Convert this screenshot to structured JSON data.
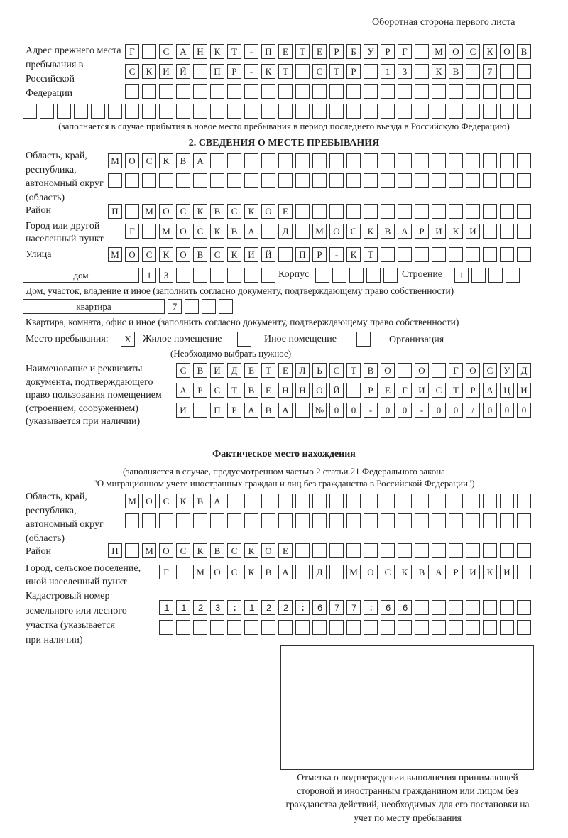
{
  "header": {
    "side_label": "Оборотная сторона первого листа"
  },
  "prev_address": {
    "label": "Адрес прежнего места пребывания в Российской Федерации",
    "rows": [
      "Г САНКТ-ПЕТЕРБУРГ МОСКОВ",
      "СКИЙ ПР-КТ СТР 13 КВ 7  ",
      "                        ",
      "                              "
    ],
    "note": "(заполняется в случае прибытия в новое место пребывания в период последнего въезда в Российскую Федерацию)"
  },
  "stay": {
    "section_title": "2. СВЕДЕНИЯ О МЕСТЕ ПРЕБЫВАНИЯ",
    "region_label": "Область, край, республика, автономный округ (область)",
    "region_rows": [
      "МОСКВА                   ",
      "                         "
    ],
    "district_label": "Район",
    "district": "П МОСКВСКОЕ              ",
    "city_label": "Город или другой населенный пункт",
    "city": "Г МОСКВА Д МОСКВАРИКИ   ",
    "street_label": "Улица",
    "street": "МОСКОВСКИЙ ПР-КТ         ",
    "house_type": "дом",
    "house": "13      ",
    "building_label": "Корпус",
    "building": "     ",
    "structure_label": "Строение",
    "structure": "1   ",
    "house_note": "Дом, участок, владение и иное (заполнить согласно документу, подтверждающему право собственности)",
    "apt_type": "квартира",
    "apt": "7   ",
    "apt_note": "Квартира, комната, офис и иное (заполнить согласно документу, подтверждающему право собственности)",
    "place_label": "Место пребывания:",
    "options": [
      {
        "label": "Жилое помещение",
        "mark": "X"
      },
      {
        "label": "Иное помещение",
        "mark": ""
      },
      {
        "label": "Организация",
        "mark": ""
      }
    ],
    "choose_note": "(Необходимо выбрать нужное)",
    "doc_label": "Наименование и реквизиты документа, подтверждающего право пользования помещением (строением, сооружением) (указывается при наличии)",
    "doc_rows": [
      "СВИДЕТЕЛЬСТВО О ГОСУД",
      "АРСТВЕННОЙ РЕГИСТРАЦИ",
      "И ПРАВА №00-00-00/000"
    ]
  },
  "actual": {
    "title": "Фактическое место нахождения",
    "note1": "(заполняется в случае, предусмотренном частью 2 статьи 21 Федерального закона",
    "note2": "\"О миграционном учете иностранных граждан и лиц без гражданства в Российской Федерации\")",
    "region_label": "Область, край, республика, автономный округ (область)",
    "region_rows": [
      "МОСКВА                  ",
      "                        "
    ],
    "district_label": "Район",
    "district": "П МОСКВСКОЕ              ",
    "city_label": "Город, сельское поселение, иной населенный пункт",
    "city": "Г МОСКВА Д МОСКВАРИКИ ",
    "cadastral_label": "Кадастровый номер земельного или лесного участка (указывается при наличии)",
    "cadastral_rows": [
      "1123:122:677:66       ",
      "                      "
    ]
  },
  "stamp": {
    "caption": "Отметка о подтверждении выполнения принимающей стороной и иностранным гражданином или лицом без гражданства действий, необходимых для его постановки на учет по месту пребывания"
  }
}
